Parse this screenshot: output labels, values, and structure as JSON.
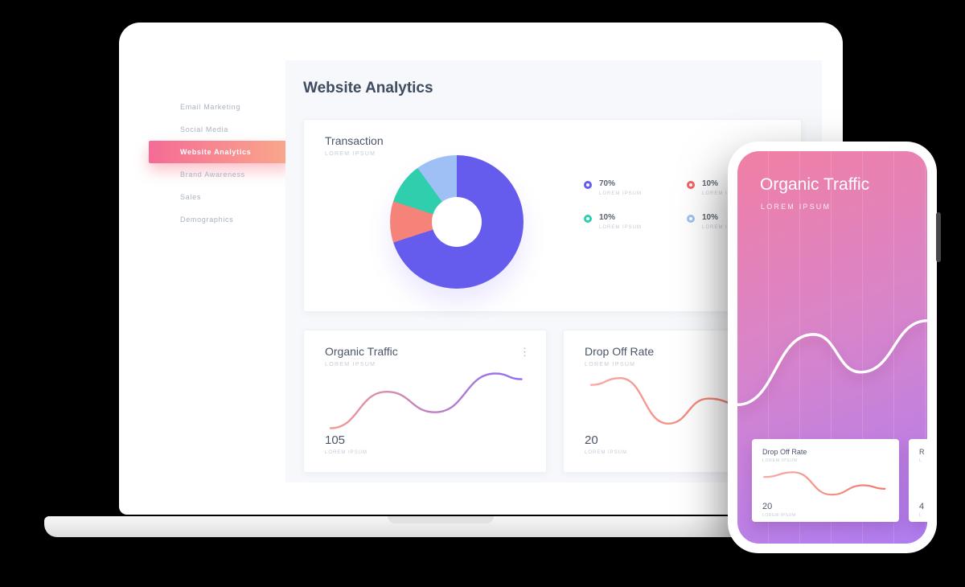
{
  "colors": {
    "active_gradient": "linear-gradient(90deg,#f56b96,#f9a98b)",
    "phone_gradient": "linear-gradient(160deg,#f07fa4 0%,#d984c9 45%,#ae7df1 100%)",
    "line_pink": "#f49a93",
    "line_purple": "#8e6cf1",
    "drop_from": "#f7aaa4",
    "drop_to": "#f4796d",
    "phone_line": "#ffffff"
  },
  "icons": {
    "kebab": "⋮"
  },
  "sidebar": {
    "items": [
      {
        "label": "Email Marketing",
        "active": false
      },
      {
        "label": "Social Media",
        "active": false
      },
      {
        "label": "Website Analytics",
        "active": true
      },
      {
        "label": "Brand Awareness",
        "active": false
      },
      {
        "label": "Sales",
        "active": false
      },
      {
        "label": "Demographics",
        "active": false
      }
    ]
  },
  "main": {
    "title": "Website Analytics",
    "transaction_card": {
      "title": "Transaction",
      "subtitle": "LOREM IPSUM",
      "legend": [
        {
          "value": "70%",
          "label": "LOREM IPSUM",
          "color": "#655ced"
        },
        {
          "value": "10%",
          "label": "LOREM IPSUM",
          "color": "#f2605f"
        },
        {
          "value": "10%",
          "label": "LOREM IPSUM",
          "color": "#2fcfae"
        },
        {
          "value": "10%",
          "label": "LOREM IPSUM",
          "color": "#9fc0f4"
        }
      ]
    },
    "organic_card": {
      "title": "Organic Traffic",
      "subtitle": "LOREM IPSUM",
      "value": "105",
      "value_label": "LOREM IPSUM"
    },
    "dropoff_card": {
      "title": "Drop Off Rate",
      "subtitle": "LOREM IPSUM",
      "value": "20",
      "value_label": "LOREM IPSUM"
    }
  },
  "phone": {
    "title": "Organic Traffic",
    "subtitle": "LOREM IPSUM",
    "cards": [
      {
        "title": "Drop Off Rate",
        "subtitle": "LOREM IPSUM",
        "value": "20",
        "value_label": "LOREM IPSUM"
      },
      {
        "title": "R",
        "subtitle": "L",
        "value": "4",
        "value_label": "L"
      }
    ]
  },
  "chart_data": [
    {
      "id": "transaction-donut",
      "type": "pie",
      "title": "Transaction",
      "labels": [
        "LOREM IPSUM",
        "LOREM IPSUM",
        "LOREM IPSUM",
        "LOREM IPSUM"
      ],
      "values": [
        70,
        10,
        10,
        10
      ],
      "colors": [
        "#655ced",
        "#f5837a",
        "#2fcfae",
        "#9fc0f4"
      ],
      "donut": true,
      "legend_position": "right"
    },
    {
      "id": "organic-desktop",
      "type": "line",
      "title": "Organic Traffic",
      "current_value": 105,
      "x": [
        0,
        25,
        50,
        75,
        100
      ],
      "points": [
        [
          2,
          54
        ],
        [
          30,
          22
        ],
        [
          54,
          40
        ],
        [
          84,
          6
        ],
        [
          97,
          11
        ]
      ],
      "stroke_gradient": [
        "#f49a93",
        "#8e6cf1"
      ],
      "grid": false
    },
    {
      "id": "dropoff-desktop",
      "type": "line",
      "title": "Drop Off Rate",
      "current_value": 20,
      "x": [
        0,
        25,
        50,
        75,
        100
      ],
      "points": [
        [
          2,
          16
        ],
        [
          20,
          10
        ],
        [
          50,
          50
        ],
        [
          75,
          28
        ],
        [
          97,
          34
        ]
      ],
      "stroke_gradient": [
        "#f7aaa4",
        "#f4796d"
      ],
      "grid": false
    },
    {
      "id": "organic-phone",
      "type": "line",
      "title": "Organic Traffic (phone)",
      "points": [
        [
          0,
          55
        ],
        [
          40,
          14
        ],
        [
          65,
          36
        ],
        [
          100,
          6
        ]
      ],
      "stroke": "#ffffff",
      "grid": true
    },
    {
      "id": "dropoff-phone-mini",
      "type": "line",
      "title": "Drop Off Rate (phone mini)",
      "current_value": 20,
      "points": [
        [
          2,
          18
        ],
        [
          25,
          10
        ],
        [
          55,
          48
        ],
        [
          80,
          32
        ],
        [
          97,
          38
        ]
      ],
      "stroke_gradient": [
        "#f7aaa4",
        "#f4796d"
      ],
      "grid": false
    }
  ]
}
